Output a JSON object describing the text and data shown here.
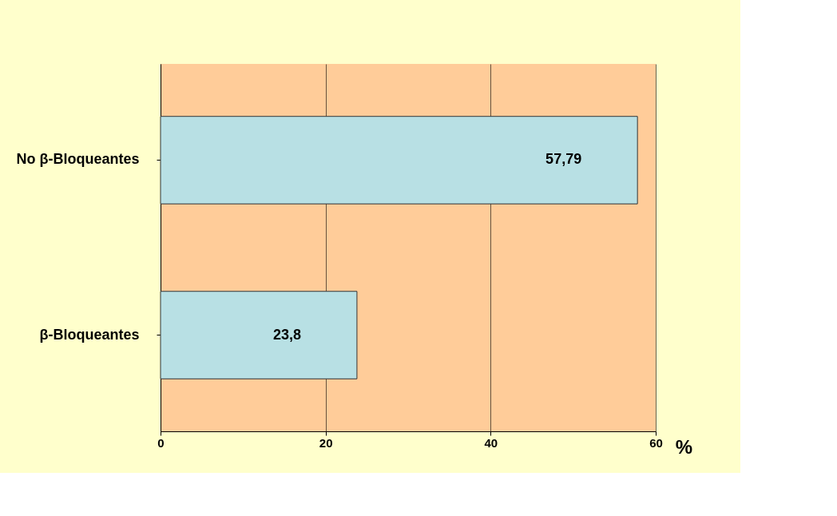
{
  "chart_data": {
    "type": "bar",
    "orientation": "horizontal",
    "categories": [
      "No β-Bloqueantes",
      "β-Bloqueantes"
    ],
    "values": [
      57.79,
      23.8
    ],
    "color": "#b8e0e4",
    "value_labels": [
      "57,79",
      "23,8"
    ],
    "xlabel": "%",
    "xlim": [
      0,
      60
    ],
    "xticks": [
      0,
      20,
      40,
      60
    ],
    "grid": "x"
  }
}
